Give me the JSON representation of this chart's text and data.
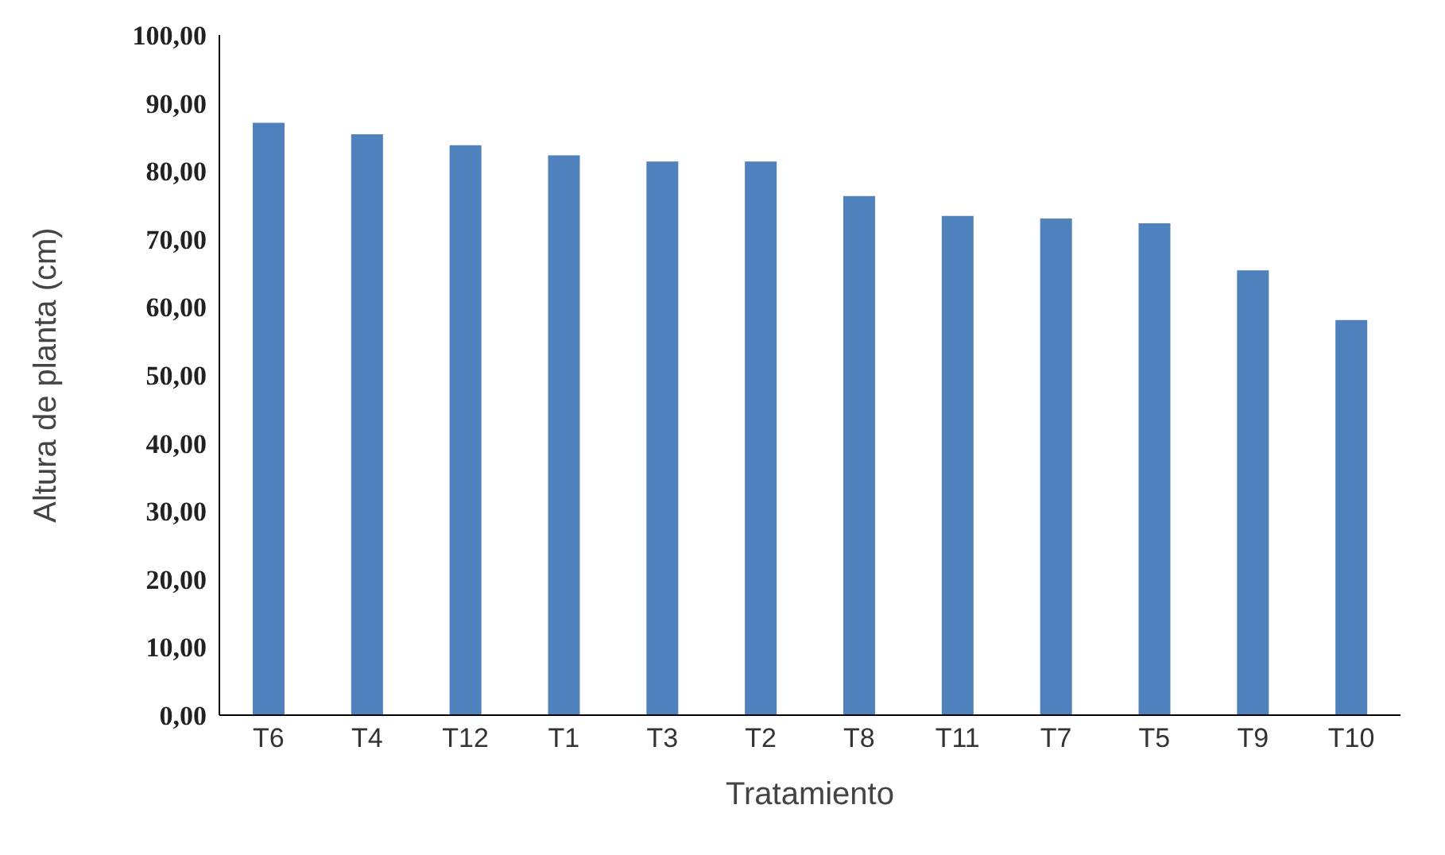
{
  "chart_data": {
    "type": "bar",
    "categories": [
      "T6",
      "T4",
      "T12",
      "T1",
      "T3",
      "T2",
      "T8",
      "T11",
      "T7",
      "T5",
      "T9",
      "T10"
    ],
    "values": [
      87.1,
      85.4,
      83.8,
      82.3,
      81.4,
      81.4,
      76.3,
      73.4,
      73.0,
      72.3,
      65.4,
      58.1
    ],
    "color": "#4f81bd",
    "xlabel": "Tratamiento",
    "ylabel": "Altura de planta (cm)",
    "ylim": [
      0,
      100
    ],
    "yticks": [
      {
        "value": 0,
        "label": "0,00"
      },
      {
        "value": 10,
        "label": "10,00"
      },
      {
        "value": 20,
        "label": "20,00"
      },
      {
        "value": 30,
        "label": "30,00"
      },
      {
        "value": 40,
        "label": "40,00"
      },
      {
        "value": 50,
        "label": "50,00"
      },
      {
        "value": 60,
        "label": "60,00"
      },
      {
        "value": 70,
        "label": "70,00"
      },
      {
        "value": 80,
        "label": "80,00"
      },
      {
        "value": 90,
        "label": "90,00"
      },
      {
        "value": 100,
        "label": "100,00"
      }
    ],
    "grid": false
  }
}
